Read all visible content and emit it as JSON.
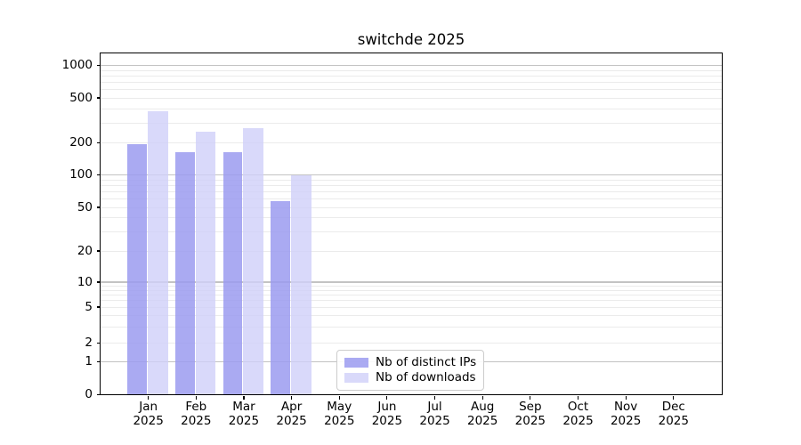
{
  "chart_data": {
    "type": "bar",
    "title": "switchde 2025",
    "categories": [
      "Jan 2025",
      "Feb 2025",
      "Mar 2025",
      "Apr 2025",
      "May 2025",
      "Jun 2025",
      "Jul 2025",
      "Aug 2025",
      "Sep 2025",
      "Oct 2025",
      "Nov 2025",
      "Dec 2025"
    ],
    "series": [
      {
        "name": "Nb of distinct IPs",
        "color": "#9b9bf0",
        "values": [
          195,
          162,
          162,
          57,
          null,
          null,
          null,
          null,
          null,
          null,
          null,
          null
        ]
      },
      {
        "name": "Nb of downloads",
        "color": "#d0d0f9",
        "values": [
          380,
          250,
          270,
          100,
          null,
          null,
          null,
          null,
          null,
          null,
          null,
          null
        ]
      }
    ],
    "xlabel": "",
    "ylabel": "",
    "yscale": "symlog",
    "y_ticks": [
      1000,
      500,
      200,
      100,
      50,
      20,
      10,
      5,
      2,
      1,
      0
    ],
    "ylim": [
      0,
      1300
    ],
    "grid": true,
    "grid_major_at": [
      1,
      10,
      100,
      1000
    ],
    "legend_position": "lower center"
  }
}
